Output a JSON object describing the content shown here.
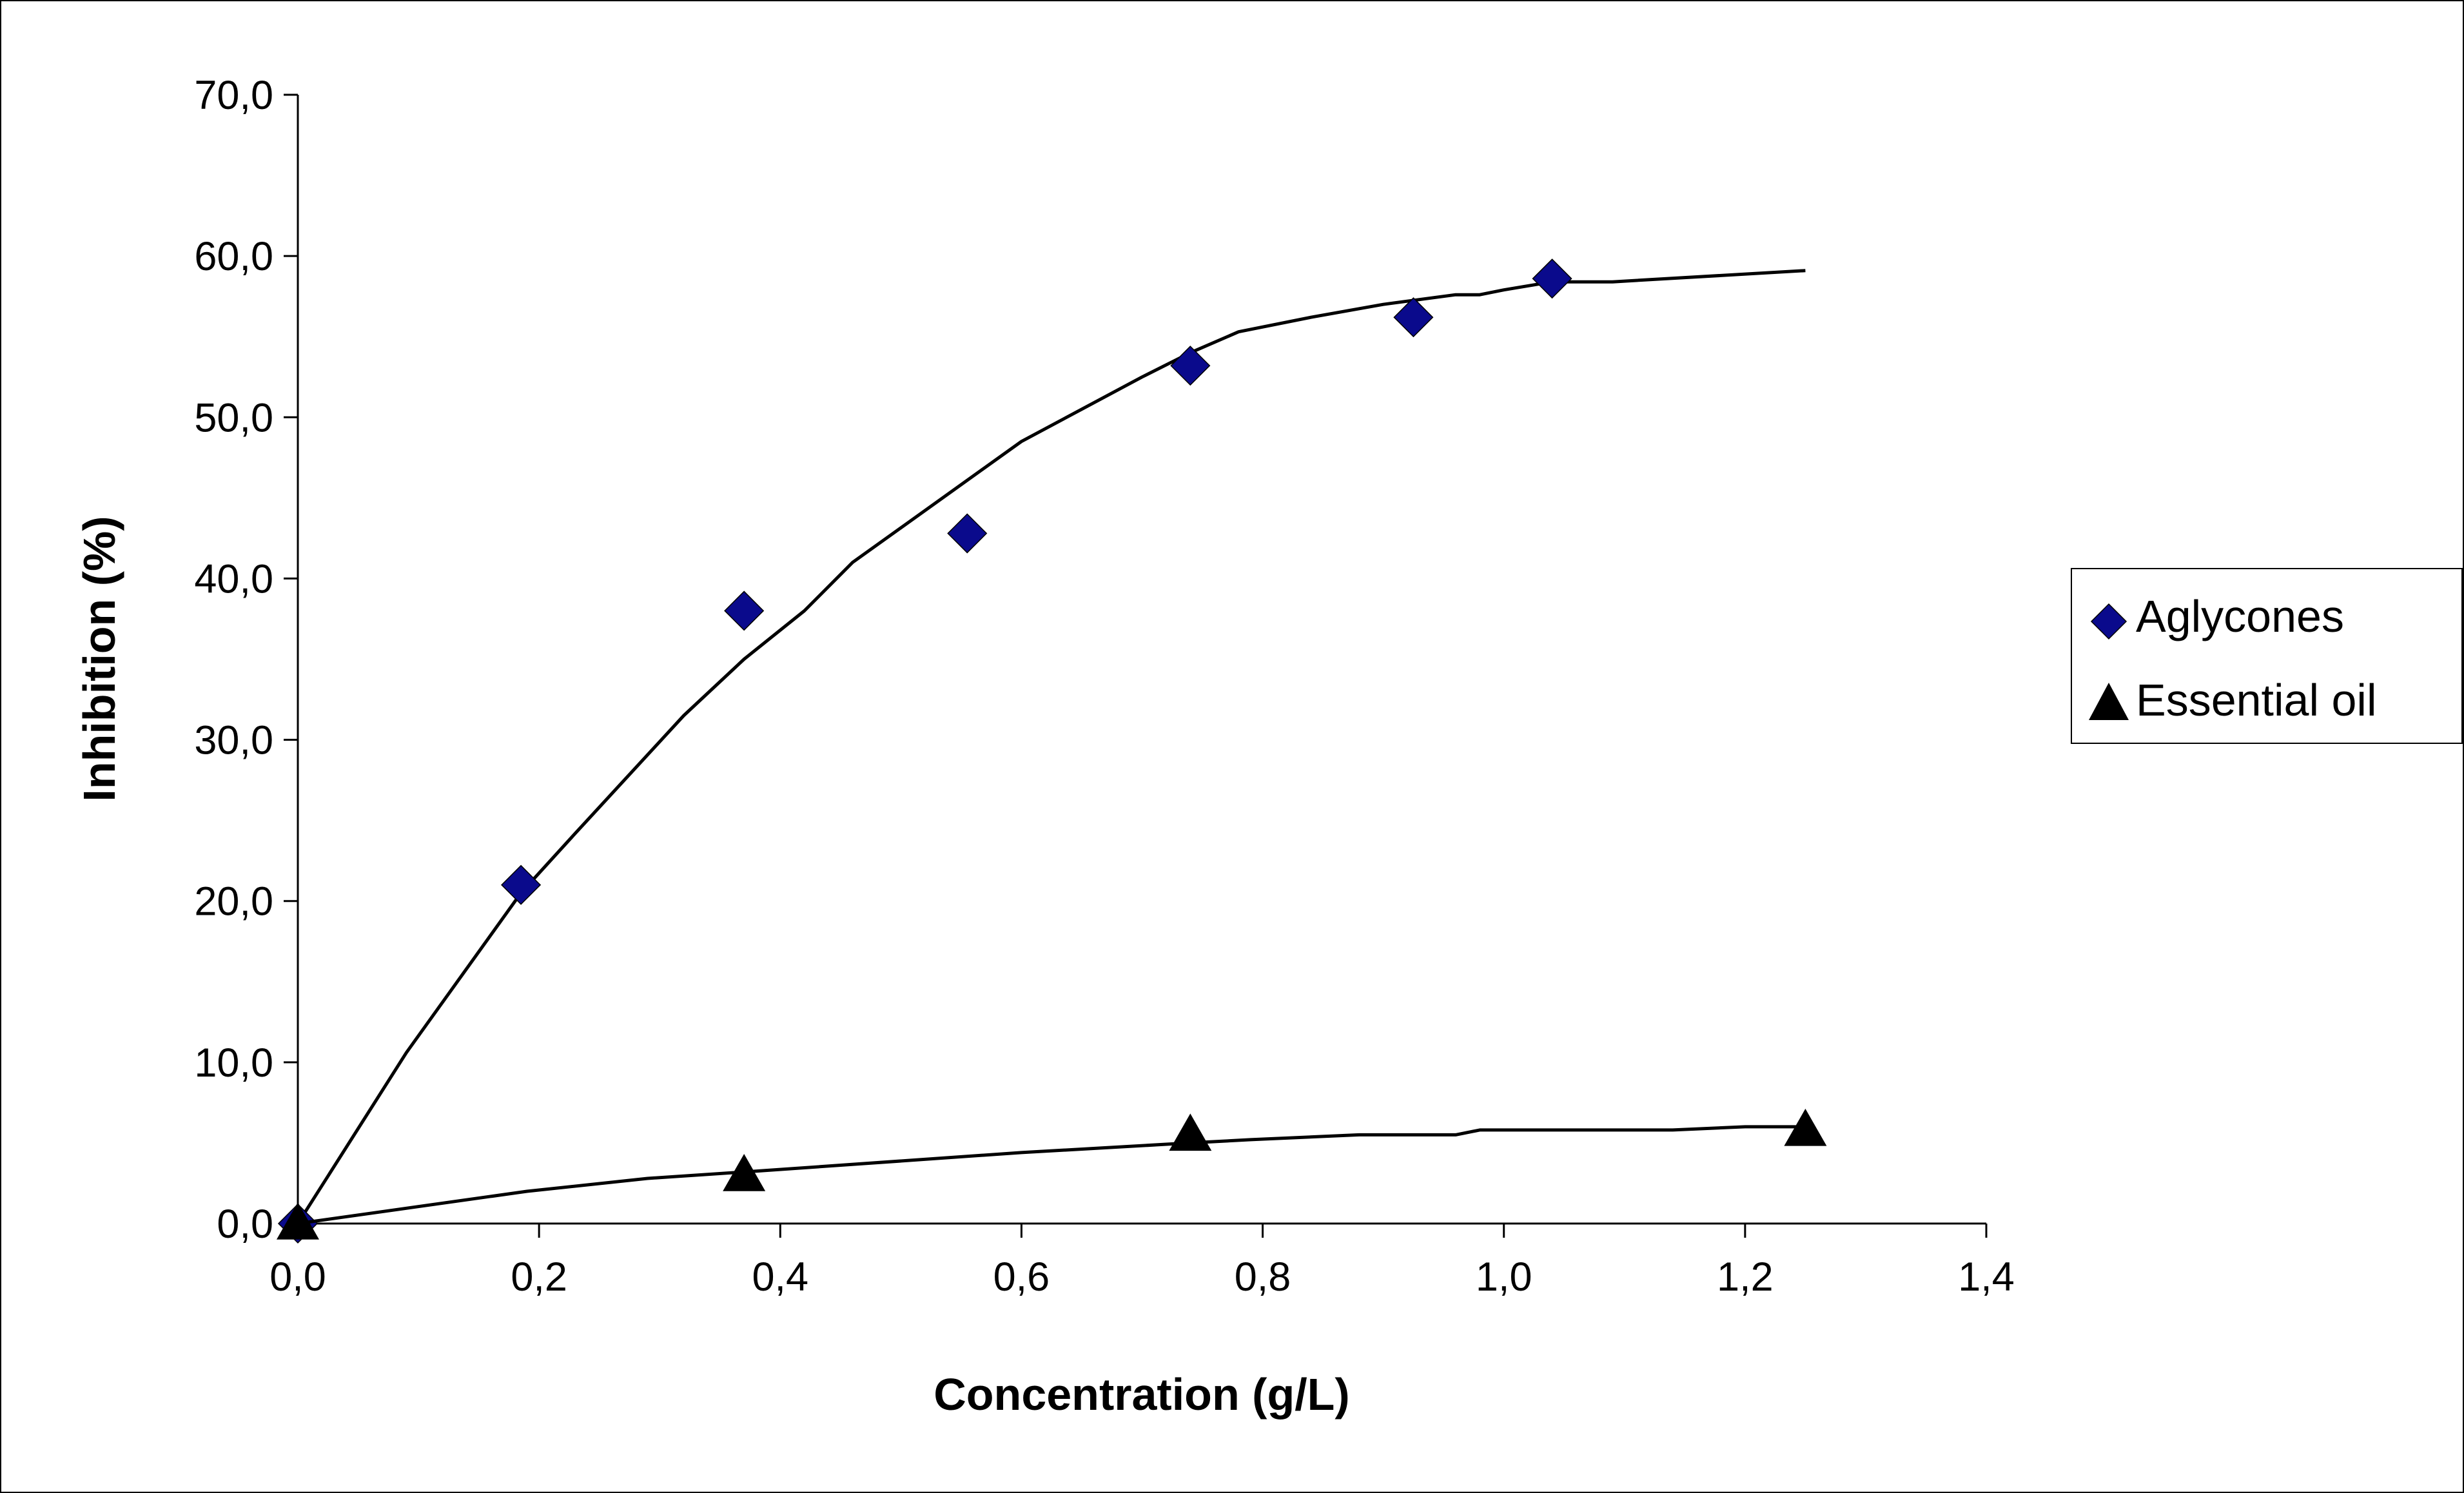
{
  "chart_data": {
    "type": "scatter",
    "title": "",
    "xlabel": "Concentration (g/L)",
    "ylabel": "Inhibition (%)",
    "xlim": [
      0,
      1.4
    ],
    "ylim": [
      0,
      70
    ],
    "x_ticks": [
      "0,0",
      "0,2",
      "0,4",
      "0,6",
      "0,8",
      "1,0",
      "1,2",
      "1,4"
    ],
    "y_ticks": [
      "0,0",
      "10,0",
      "20,0",
      "30,0",
      "40,0",
      "50,0",
      "60,0",
      "70,0"
    ],
    "grid": false,
    "legend_position": "right",
    "series": [
      {
        "name": "Aglycones",
        "marker": "diamond",
        "color": "#0a0a8c",
        "points": [
          [
            0.0,
            0.0
          ],
          [
            0.185,
            21.0
          ],
          [
            0.37,
            38.0
          ],
          [
            0.555,
            42.8
          ],
          [
            0.74,
            53.2
          ],
          [
            0.925,
            56.2
          ],
          [
            1.04,
            58.6
          ]
        ],
        "trend": [
          [
            0.0,
            0.0
          ],
          [
            0.09,
            10.6
          ],
          [
            0.185,
            20.5
          ],
          [
            0.23,
            24.2
          ],
          [
            0.32,
            31.5
          ],
          [
            0.37,
            35.0
          ],
          [
            0.42,
            38.0
          ],
          [
            0.46,
            41.0
          ],
          [
            0.6,
            48.5
          ],
          [
            0.7,
            52.5
          ],
          [
            0.74,
            54.0
          ],
          [
            0.78,
            55.3
          ],
          [
            0.84,
            56.2
          ],
          [
            0.9,
            57.0
          ],
          [
            0.96,
            57.6
          ],
          [
            0.98,
            57.6
          ],
          [
            1.0,
            57.9
          ],
          [
            1.04,
            58.4
          ],
          [
            1.09,
            58.4
          ],
          [
            1.25,
            59.1
          ]
        ]
      },
      {
        "name": "Essential oil",
        "marker": "triangle",
        "color": "#000000",
        "points": [
          [
            0.0,
            0.0
          ],
          [
            0.37,
            3.0
          ],
          [
            0.74,
            5.5
          ],
          [
            1.25,
            5.8
          ]
        ],
        "trend": [
          [
            0.0,
            0.0
          ],
          [
            0.19,
            2.0
          ],
          [
            0.29,
            2.8
          ],
          [
            0.37,
            3.2
          ],
          [
            0.6,
            4.4
          ],
          [
            0.74,
            5.0
          ],
          [
            0.79,
            5.2
          ],
          [
            0.88,
            5.5
          ],
          [
            0.96,
            5.5
          ],
          [
            0.98,
            5.8
          ],
          [
            1.14,
            5.8
          ],
          [
            1.2,
            6.0
          ],
          [
            1.25,
            6.0
          ]
        ]
      }
    ]
  }
}
